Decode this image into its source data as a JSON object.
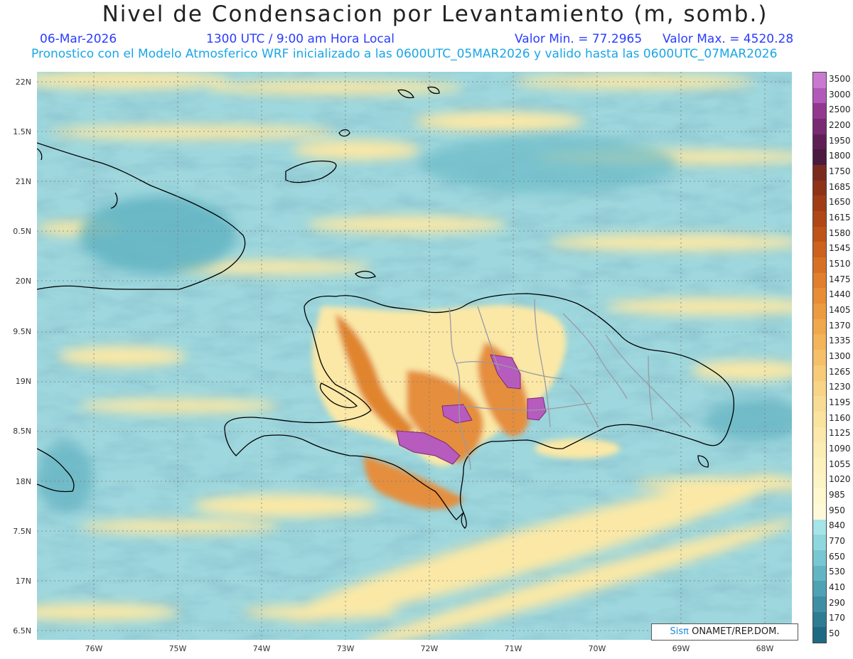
{
  "header": {
    "title": "Nivel de Condensacion por Levantamiento (m, somb.)",
    "date": "06-Mar-2026",
    "time": "1300 UTC / 9:00 am Hora Local",
    "valmin": "Valor Min. = 77.2965",
    "valmax": "Valor Max. = 4520.28",
    "info": "Pronostico con el Modelo Atmosferico WRF inicializado a las 0600UTC_05MAR2026 y valido hasta las  0600UTC_07MAR2026"
  },
  "axes": {
    "lat_labels": [
      "22N",
      "1.5N",
      "21N",
      "0.5N",
      "20N",
      "9.5N",
      "19N",
      "8.5N",
      "18N",
      "7.5N",
      "17N",
      "6.5N"
    ],
    "lon_labels": [
      "76W",
      "75W",
      "74W",
      "73W",
      "72W",
      "71W",
      "70W",
      "69W",
      "68W"
    ]
  },
  "legend": {
    "labels": [
      "3500",
      "3000",
      "2500",
      "2200",
      "1950",
      "1800",
      "1750",
      "1685",
      "1650",
      "1615",
      "1580",
      "1545",
      "1510",
      "1475",
      "1440",
      "1405",
      "1370",
      "1335",
      "1300",
      "1265",
      "1230",
      "1195",
      "1160",
      "1125",
      "1090",
      "1055",
      "1020",
      "985",
      "950",
      "840",
      "770",
      "650",
      "530",
      "410",
      "290",
      "170",
      "50"
    ],
    "colors": [
      "#c97ad0",
      "#b25aba",
      "#93388f",
      "#7a2a73",
      "#5e1f55",
      "#4a1a3f",
      "#7a2b1d",
      "#8e3318",
      "#a03d16",
      "#b04716",
      "#bf5418",
      "#cc621d",
      "#d87024",
      "#e27f2c",
      "#e88c36",
      "#ed9a41",
      "#f0a74d",
      "#f3b45a",
      "#f5c068",
      "#f7cb77",
      "#f8d486",
      "#f9dc93",
      "#fae39f",
      "#fbe8aa",
      "#fcedb4",
      "#fdf1bd",
      "#fdf4c6",
      "#fef7cf",
      "#fefad9",
      "#a6e4ea",
      "#8fd7df",
      "#78c7d2",
      "#63b5c4",
      "#4fa2b4",
      "#3e8fa3",
      "#2d7c92",
      "#1f6a82"
    ]
  },
  "credit": {
    "brand": "Sisπ",
    "text": " ONAMET/REP.DOM."
  },
  "map": {
    "ocean_color": "#9ed7dd",
    "land_warm": "#e0852e",
    "peak_color": "#b75bbf",
    "coast_color": "#000000"
  }
}
